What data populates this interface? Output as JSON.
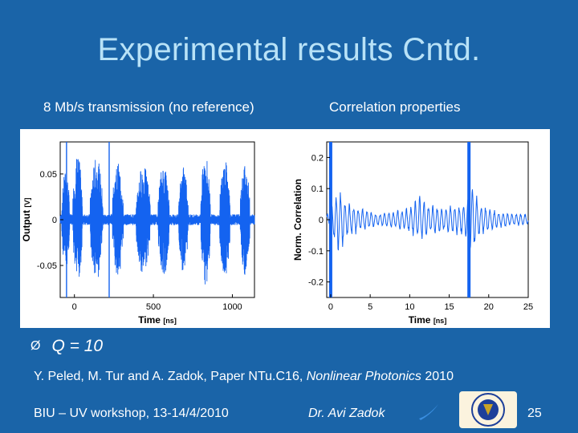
{
  "slide": {
    "title": "Experimental results Cntd.",
    "subtitle_left": "8 Mb/s transmission (no reference)",
    "subtitle_right": "Correlation properties",
    "bullet_marker": "Ø",
    "bullet_text": "Q = 10",
    "citation_plain": "Y. Peled, M. Tur and A. Zadok, Paper NTu.C16, ",
    "citation_italic": "Nonlinear Photonics",
    "citation_year": " 2010",
    "footer_left": "BIU – UV workshop, 13-14/4/2010",
    "footer_center": "Dr. Avi Zadok",
    "slide_number": "25"
  },
  "colors": {
    "background": "#1a64a8",
    "title": "#b8e2f7",
    "signal": "#1463f0",
    "logo_primary": "#1d3f9a",
    "logo_accent": "#c9a227"
  },
  "chart_data": [
    {
      "type": "line",
      "title": "",
      "xlabel": "Time",
      "xunit": "[ns]",
      "ylabel": "Output",
      "yunit": "[V]",
      "xlim": [
        -90,
        1140
      ],
      "ylim": [
        -0.085,
        0.085
      ],
      "xticks": [
        0,
        500,
        1000
      ],
      "yticks": [
        0.05,
        0,
        -0.05
      ],
      "ytick_labels": [
        "0.05",
        "0",
        "-0.05"
      ],
      "grid": false,
      "marker_lines_x": [
        -50,
        220
      ],
      "bursts": [
        {
          "start": -80,
          "end": -30,
          "peak": 0.054
        },
        {
          "start": -10,
          "end": 50,
          "peak": 0.072
        },
        {
          "start": 100,
          "end": 180,
          "peak": 0.068
        },
        {
          "start": 240,
          "end": 310,
          "peak": 0.062
        },
        {
          "start": 390,
          "end": 480,
          "peak": 0.06
        },
        {
          "start": 530,
          "end": 600,
          "peak": 0.062
        },
        {
          "start": 660,
          "end": 720,
          "peak": 0.058
        },
        {
          "start": 800,
          "end": 860,
          "peak": 0.072
        },
        {
          "start": 920,
          "end": 985,
          "peak": 0.066
        },
        {
          "start": 1050,
          "end": 1110,
          "peak": 0.062
        }
      ],
      "baseline_noise": 0.006
    },
    {
      "type": "line",
      "title": "",
      "xlabel": "Time",
      "xunit": "[ns]",
      "ylabel": "Norm. Correlation",
      "xlim": [
        -0.5,
        25
      ],
      "ylim": [
        -0.25,
        0.25
      ],
      "xticks": [
        0,
        5,
        10,
        15,
        20,
        25
      ],
      "yticks": [
        0.2,
        0.1,
        0,
        -0.1,
        -0.2
      ],
      "ytick_labels": [
        "0.2",
        "0.1",
        "0",
        "-0.1",
        "-0.2"
      ],
      "grid": false,
      "peaks_x": [
        0,
        17.5
      ],
      "envelope": [
        [
          0,
          0.05
        ],
        [
          1,
          0.12
        ],
        [
          2,
          0.06
        ],
        [
          4,
          0.04
        ],
        [
          6,
          0.02
        ],
        [
          8,
          0.03
        ],
        [
          10,
          0.04
        ],
        [
          11.2,
          0.08
        ],
        [
          12,
          0.06
        ],
        [
          14,
          0.04
        ],
        [
          16,
          0.05
        ],
        [
          17,
          0.06
        ],
        [
          18,
          0.12
        ],
        [
          19,
          0.05
        ],
        [
          21,
          0.03
        ],
        [
          23,
          0.02
        ],
        [
          25,
          0.02
        ]
      ]
    }
  ]
}
